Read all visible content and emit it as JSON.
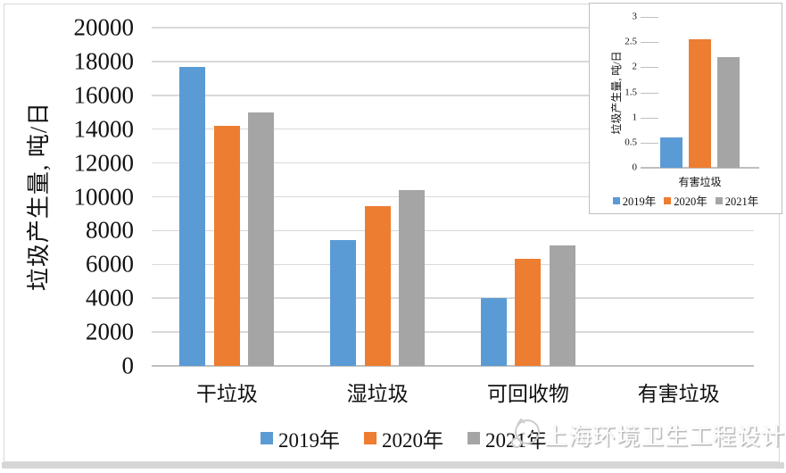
{
  "watermark": {
    "text": "上海环境卫生工程设计院",
    "logo": "mascot-logo"
  },
  "chart_data": [
    {
      "id": "main",
      "type": "bar",
      "ylabel": "垃圾产生量, 吨/日",
      "categories": [
        "干垃圾",
        "湿垃圾",
        "可回收物",
        "有害垃圾"
      ],
      "series": [
        {
          "name": "2019年",
          "color": "#5B9BD5",
          "values": [
            17700,
            7450,
            4000,
            0.6
          ]
        },
        {
          "name": "2020年",
          "color": "#ED7D31",
          "values": [
            14200,
            9450,
            6350,
            2.55
          ]
        },
        {
          "name": "2021年",
          "color": "#A5A5A5",
          "values": [
            15000,
            10400,
            7100,
            2.2
          ]
        }
      ],
      "ylim": [
        0,
        20000
      ],
      "ytick_step": 2000,
      "grid": true,
      "legend_position": "bottom"
    },
    {
      "id": "inset",
      "type": "bar",
      "ylabel": "垃圾产生量, 吨/日",
      "categories": [
        "有害垃圾"
      ],
      "series": [
        {
          "name": "2019年",
          "color": "#5B9BD5",
          "values": [
            0.6
          ]
        },
        {
          "name": "2020年",
          "color": "#ED7D31",
          "values": [
            2.55
          ]
        },
        {
          "name": "2021年",
          "color": "#A5A5A5",
          "values": [
            2.2
          ]
        }
      ],
      "ylim": [
        0,
        3
      ],
      "ytick_step": 0.5,
      "grid": false,
      "legend_position": "bottom"
    }
  ]
}
